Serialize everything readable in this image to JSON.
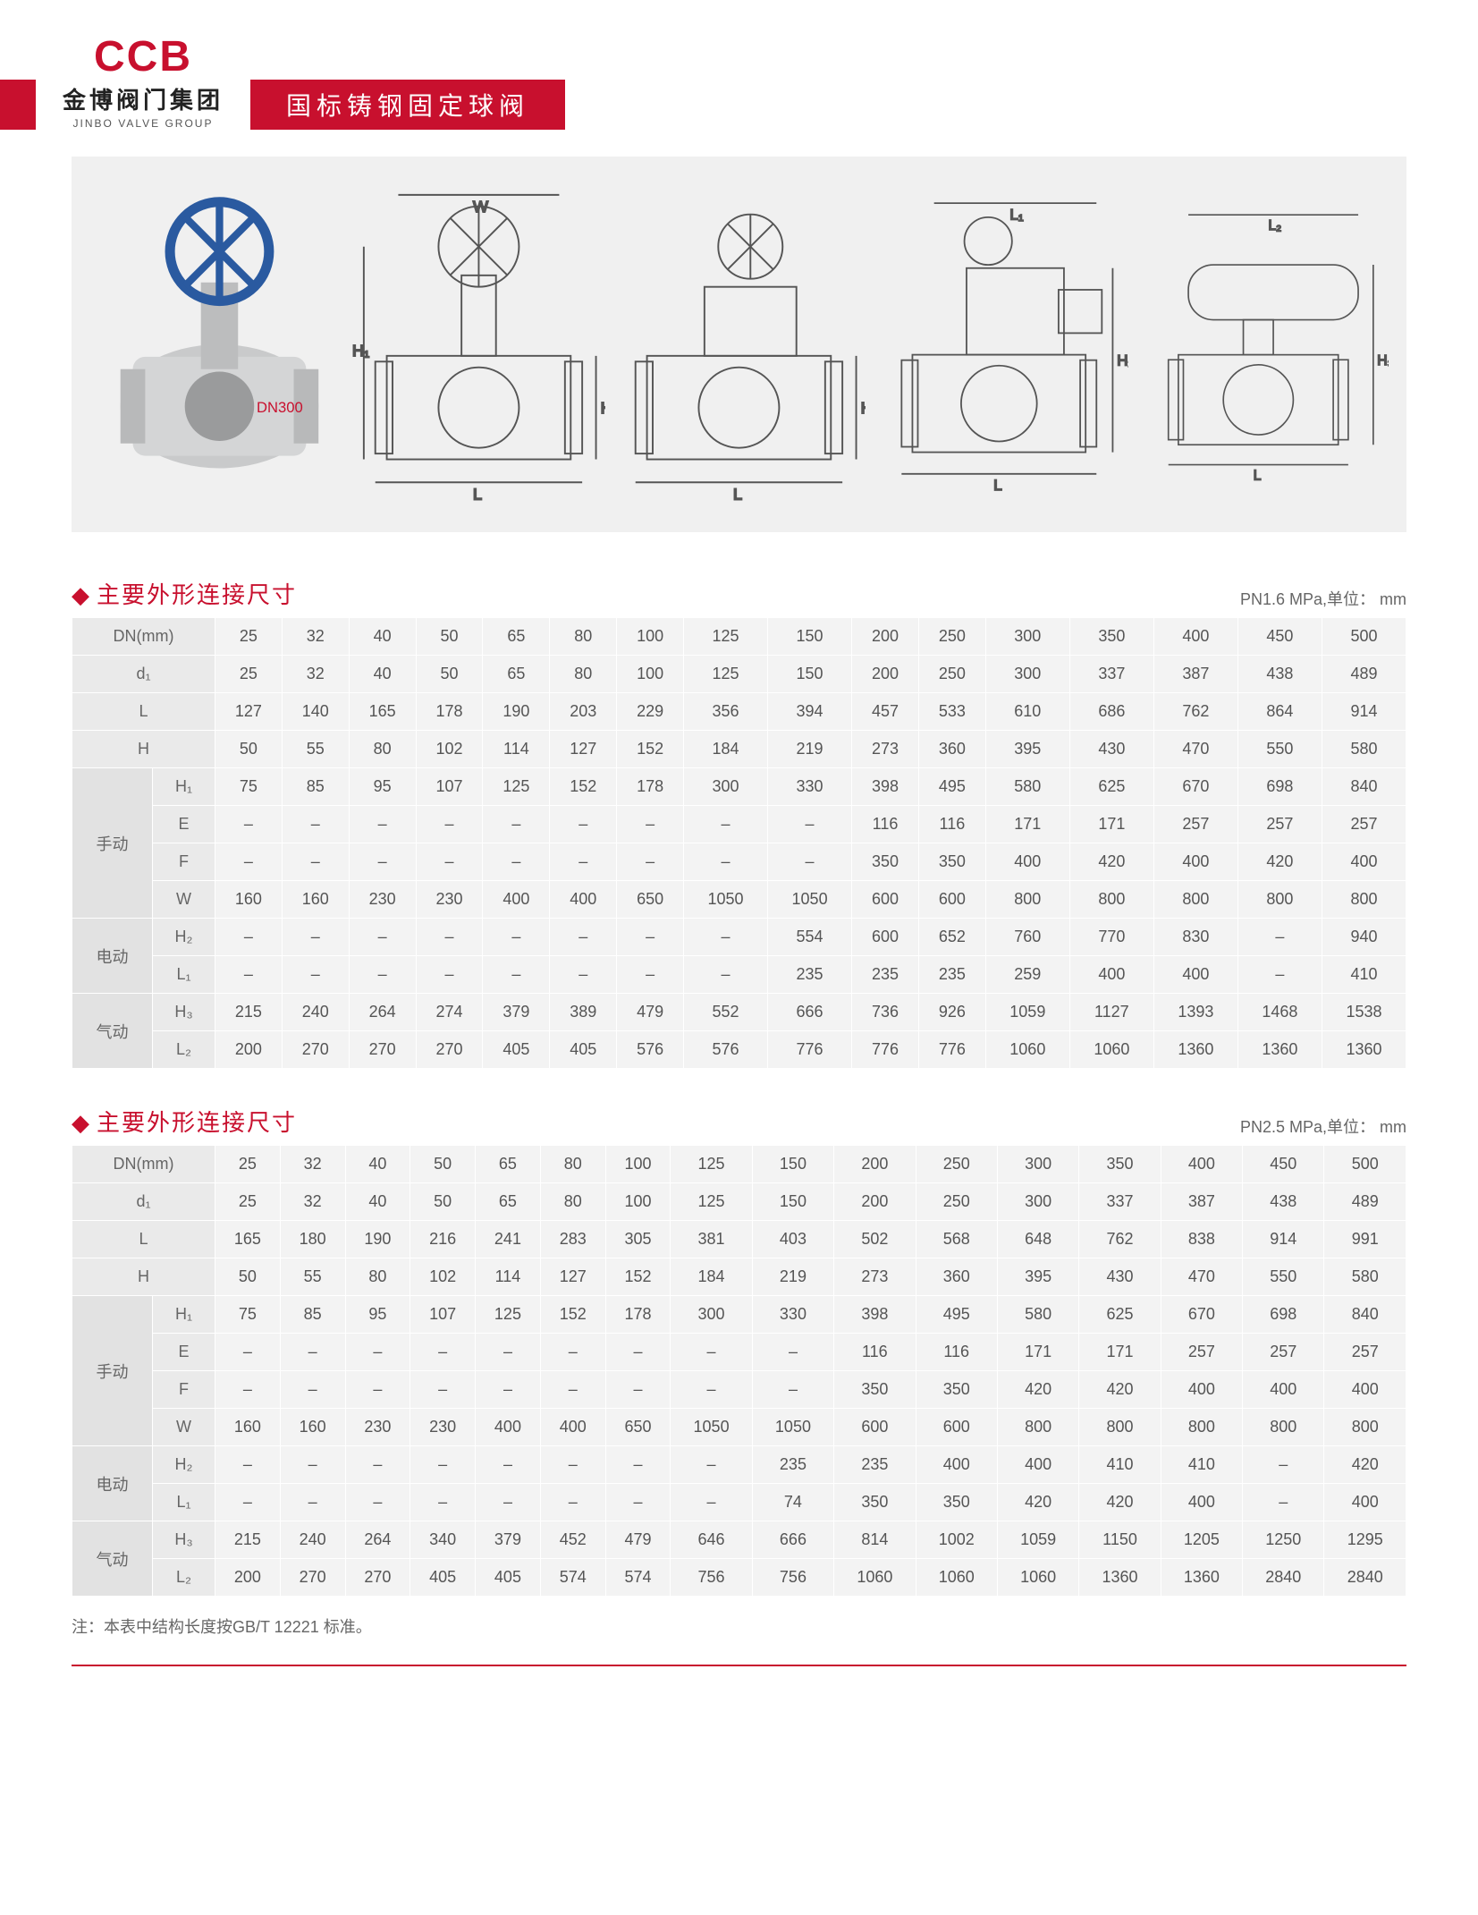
{
  "header": {
    "logo_text": "CCB",
    "logo_cn": "金博阀门集团",
    "logo_en": "JINBO VALVE GROUP",
    "title": "国标铸钢固定球阀"
  },
  "diagram_labels": {
    "photo_badge": "DN300",
    "dims": [
      "W",
      "H",
      "H₁",
      "L",
      "L₁",
      "L₂",
      "H₂"
    ]
  },
  "section1": {
    "title": "主要外形连接尺寸",
    "unit": "PN1.6 MPa,单位： mm"
  },
  "section2": {
    "title": "主要外形连接尺寸",
    "unit": "PN2.5 MPa,单位： mm"
  },
  "footnote": "注：本表中结构长度按GB/T 12221 标准。",
  "columns": [
    "25",
    "32",
    "40",
    "50",
    "65",
    "80",
    "100",
    "125",
    "150",
    "200",
    "250",
    "300",
    "350",
    "400",
    "450",
    "500"
  ],
  "table1": {
    "dn_label": "DN(mm)",
    "simple_rows": [
      {
        "label": "d₁",
        "vals": [
          "25",
          "32",
          "40",
          "50",
          "65",
          "80",
          "100",
          "125",
          "150",
          "200",
          "250",
          "300",
          "337",
          "387",
          "438",
          "489"
        ]
      },
      {
        "label": "L",
        "vals": [
          "127",
          "140",
          "165",
          "178",
          "190",
          "203",
          "229",
          "356",
          "394",
          "457",
          "533",
          "610",
          "686",
          "762",
          "864",
          "914"
        ]
      },
      {
        "label": "H",
        "vals": [
          "50",
          "55",
          "80",
          "102",
          "114",
          "127",
          "152",
          "184",
          "219",
          "273",
          "360",
          "395",
          "430",
          "470",
          "550",
          "580"
        ]
      }
    ],
    "groups": [
      {
        "name": "手动",
        "rows": [
          {
            "label": "H₁",
            "vals": [
              "75",
              "85",
              "95",
              "107",
              "125",
              "152",
              "178",
              "300",
              "330",
              "398",
              "495",
              "580",
              "625",
              "670",
              "698",
              "840"
            ]
          },
          {
            "label": "E",
            "vals": [
              "–",
              "–",
              "–",
              "–",
              "–",
              "–",
              "–",
              "–",
              "–",
              "116",
              "116",
              "171",
              "171",
              "257",
              "257",
              "257"
            ]
          },
          {
            "label": "F",
            "vals": [
              "–",
              "–",
              "–",
              "–",
              "–",
              "–",
              "–",
              "–",
              "–",
              "350",
              "350",
              "400",
              "420",
              "400",
              "420",
              "400"
            ]
          },
          {
            "label": "W",
            "vals": [
              "160",
              "160",
              "230",
              "230",
              "400",
              "400",
              "650",
              "1050",
              "1050",
              "600",
              "600",
              "800",
              "800",
              "800",
              "800",
              "800"
            ]
          }
        ]
      },
      {
        "name": "电动",
        "rows": [
          {
            "label": "H₂",
            "vals": [
              "–",
              "–",
              "–",
              "–",
              "–",
              "–",
              "–",
              "–",
              "554",
              "600",
              "652",
              "760",
              "770",
              "830",
              "–",
              "940"
            ]
          },
          {
            "label": "L₁",
            "vals": [
              "–",
              "–",
              "–",
              "–",
              "–",
              "–",
              "–",
              "–",
              "235",
              "235",
              "235",
              "259",
              "400",
              "400",
              "–",
              "410"
            ]
          }
        ]
      },
      {
        "name": "气动",
        "rows": [
          {
            "label": "H₃",
            "vals": [
              "215",
              "240",
              "264",
              "274",
              "379",
              "389",
              "479",
              "552",
              "666",
              "736",
              "926",
              "1059",
              "1127",
              "1393",
              "1468",
              "1538"
            ]
          },
          {
            "label": "L₂",
            "vals": [
              "200",
              "270",
              "270",
              "270",
              "405",
              "405",
              "576",
              "576",
              "776",
              "776",
              "776",
              "1060",
              "1060",
              "1360",
              "1360",
              "1360"
            ]
          }
        ]
      }
    ]
  },
  "table2": {
    "dn_label": "DN(mm)",
    "simple_rows": [
      {
        "label": "d₁",
        "vals": [
          "25",
          "32",
          "40",
          "50",
          "65",
          "80",
          "100",
          "125",
          "150",
          "200",
          "250",
          "300",
          "337",
          "387",
          "438",
          "489"
        ]
      },
      {
        "label": "L",
        "vals": [
          "165",
          "180",
          "190",
          "216",
          "241",
          "283",
          "305",
          "381",
          "403",
          "502",
          "568",
          "648",
          "762",
          "838",
          "914",
          "991"
        ]
      },
      {
        "label": "H",
        "vals": [
          "50",
          "55",
          "80",
          "102",
          "114",
          "127",
          "152",
          "184",
          "219",
          "273",
          "360",
          "395",
          "430",
          "470",
          "550",
          "580"
        ]
      }
    ],
    "groups": [
      {
        "name": "手动",
        "rows": [
          {
            "label": "H₁",
            "vals": [
              "75",
              "85",
              "95",
              "107",
              "125",
              "152",
              "178",
              "300",
              "330",
              "398",
              "495",
              "580",
              "625",
              "670",
              "698",
              "840"
            ]
          },
          {
            "label": "E",
            "vals": [
              "–",
              "–",
              "–",
              "–",
              "–",
              "–",
              "–",
              "–",
              "–",
              "116",
              "116",
              "171",
              "171",
              "257",
              "257",
              "257"
            ]
          },
          {
            "label": "F",
            "vals": [
              "–",
              "–",
              "–",
              "–",
              "–",
              "–",
              "–",
              "–",
              "–",
              "350",
              "350",
              "420",
              "420",
              "400",
              "400",
              "400"
            ]
          },
          {
            "label": "W",
            "vals": [
              "160",
              "160",
              "230",
              "230",
              "400",
              "400",
              "650",
              "1050",
              "1050",
              "600",
              "600",
              "800",
              "800",
              "800",
              "800",
              "800"
            ]
          }
        ]
      },
      {
        "name": "电动",
        "rows": [
          {
            "label": "H₂",
            "vals": [
              "–",
              "–",
              "–",
              "–",
              "–",
              "–",
              "–",
              "–",
              "235",
              "235",
              "400",
              "400",
              "410",
              "410",
              "–",
              "420"
            ]
          },
          {
            "label": "L₁",
            "vals": [
              "–",
              "–",
              "–",
              "–",
              "–",
              "–",
              "–",
              "–",
              "74",
              "350",
              "350",
              "420",
              "420",
              "400",
              "–",
              "400"
            ]
          }
        ]
      },
      {
        "name": "气动",
        "rows": [
          {
            "label": "H₃",
            "vals": [
              "215",
              "240",
              "264",
              "340",
              "379",
              "452",
              "479",
              "646",
              "666",
              "814",
              "1002",
              "1059",
              "1150",
              "1205",
              "1250",
              "1295"
            ]
          },
          {
            "label": "L₂",
            "vals": [
              "200",
              "270",
              "270",
              "405",
              "405",
              "574",
              "574",
              "756",
              "756",
              "1060",
              "1060",
              "1060",
              "1360",
              "1360",
              "2840",
              "2840"
            ]
          }
        ]
      }
    ]
  }
}
